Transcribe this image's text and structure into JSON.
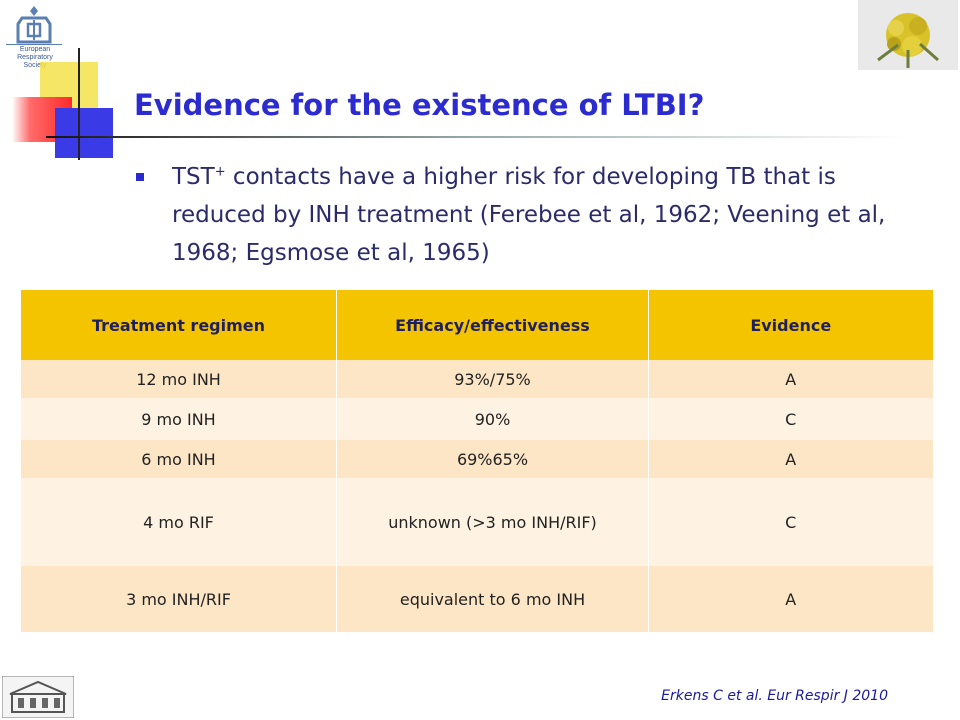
{
  "logo": {
    "society_lines": [
      "European Respiratory",
      "Society"
    ]
  },
  "slide": {
    "title": "Evidence for the existence of LTBI?",
    "bullet": {
      "prefix": "TST",
      "superscript": "+",
      "text": " contacts have a higher risk for developing TB that is reduced by INH treatment (Ferebee et al, 1962; Veening et al, 1968; Egsmose et al, 1965)"
    }
  },
  "table": {
    "headers": [
      "Treatment regimen",
      "Efficacy/effectiveness",
      "Evidence"
    ],
    "rows": [
      [
        "12 mo INH",
        "93%/75%",
        "A"
      ],
      [
        "9 mo INH",
        "90%",
        "C"
      ],
      [
        "6 mo INH",
        "69%65%",
        "A"
      ],
      [
        "4 mo RIF",
        "unknown (>3 mo INH/RIF)",
        "C"
      ],
      [
        "3 mo INH/RIF",
        "equivalent to 6 mo INH",
        "A"
      ]
    ]
  },
  "citation": "Erkens C et al. Eur Respir J 2010",
  "colors": {
    "title": "#2b2bd0",
    "header_bg": "#f5c400",
    "row_dark": "#fde6c6",
    "row_light": "#fef3e3",
    "citation": "#1a1aa0"
  }
}
